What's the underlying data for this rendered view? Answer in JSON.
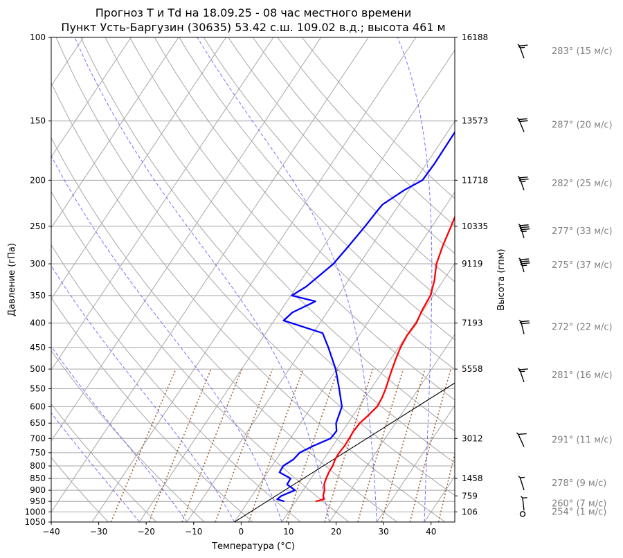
{
  "chart_data": {
    "type": "line",
    "subtype": "skew-T log-P diagram",
    "title_line1": "Прогноз T и Td на 18.09.25 - 08 час местного времени",
    "title_line2": "Пункт Усть-Баргузин (30635) 53.42 с.ш. 109.02 в.д.; высота 461 м",
    "xlabel": "Температура (°C)",
    "ylabel": "Давление (гПа)",
    "ylabel_right": "Высота (гпм)",
    "xlim": [
      -40,
      45
    ],
    "ylim": [
      1050,
      100
    ],
    "yscale": "log",
    "grid": true,
    "x_ticks": [
      "−40",
      "−30",
      "−20",
      "−10",
      "0",
      "10",
      "20",
      "30",
      "40"
    ],
    "x_tick_values": [
      -40,
      -30,
      -20,
      -10,
      0,
      10,
      20,
      30,
      40
    ],
    "y_ticks": [
      1050,
      1000,
      950,
      900,
      850,
      800,
      750,
      700,
      650,
      600,
      550,
      500,
      450,
      400,
      350,
      300,
      250,
      200,
      150,
      100
    ],
    "height_ticks": [
      {
        "p": 1000,
        "label": "106"
      },
      {
        "p": 925,
        "label": "759"
      },
      {
        "p": 850,
        "label": "1458"
      },
      {
        "p": 700,
        "label": "3012"
      },
      {
        "p": 500,
        "label": "5558"
      },
      {
        "p": 400,
        "label": "7193"
      },
      {
        "p": 300,
        "label": "9119"
      },
      {
        "p": 250,
        "label": "10335"
      },
      {
        "p": 200,
        "label": "11718"
      },
      {
        "p": 150,
        "label": "13573"
      },
      {
        "p": 100,
        "label": "16188"
      }
    ],
    "series": [
      {
        "color": "#ff0000",
        "points": [
          [
            950,
            14.2
          ],
          [
            940,
            15.6
          ],
          [
            925,
            15.0
          ],
          [
            900,
            14.5
          ],
          [
            875,
            13.6
          ],
          [
            850,
            13.2
          ],
          [
            825,
            12.9
          ],
          [
            800,
            12.8
          ],
          [
            775,
            12.4
          ],
          [
            750,
            12.3
          ],
          [
            725,
            12.5
          ],
          [
            700,
            12.4
          ],
          [
            675,
            12.3
          ],
          [
            650,
            12.5
          ],
          [
            625,
            13.2
          ],
          [
            600,
            13.8
          ],
          [
            575,
            13.6
          ],
          [
            550,
            13.1
          ],
          [
            525,
            12.4
          ],
          [
            500,
            11.7
          ],
          [
            475,
            11.0
          ],
          [
            450,
            10.4
          ],
          [
            425,
            10.1
          ],
          [
            400,
            10.3
          ],
          [
            375,
            9.7
          ],
          [
            350,
            9.4
          ],
          [
            325,
            8.1
          ],
          [
            300,
            6.2
          ],
          [
            275,
            5.0
          ],
          [
            250,
            4.0
          ],
          [
            225,
            2.8
          ],
          [
            215,
            2.3
          ],
          [
            200,
            1.7
          ],
          [
            175,
            0.3
          ],
          [
            150,
            -2.0
          ],
          [
            125,
            -4.5
          ],
          [
            108,
            -7.5
          ],
          [
            100,
            -9.8
          ]
        ]
      },
      {
        "color": "#0000ff",
        "points": [
          [
            950,
            7.6
          ],
          [
            940,
            5.8
          ],
          [
            925,
            6.2
          ],
          [
            900,
            8.3
          ],
          [
            875,
            5.8
          ],
          [
            850,
            5.7
          ],
          [
            825,
            2.5
          ],
          [
            800,
            2.4
          ],
          [
            775,
            3.6
          ],
          [
            750,
            4.0
          ],
          [
            725,
            6.0
          ],
          [
            700,
            8.5
          ],
          [
            675,
            8.7
          ],
          [
            650,
            7.5
          ],
          [
            600,
            6.4
          ],
          [
            550,
            3.3
          ],
          [
            500,
            -0.2
          ],
          [
            450,
            -4.8
          ],
          [
            420,
            -8.0
          ],
          [
            395,
            -18.0
          ],
          [
            380,
            -17.3
          ],
          [
            360,
            -14.0
          ],
          [
            350,
            -19.8
          ],
          [
            335,
            -18.0
          ],
          [
            300,
            -15.5
          ],
          [
            275,
            -14.8
          ],
          [
            250,
            -14.1
          ],
          [
            235,
            -13.8
          ],
          [
            225,
            -13.5
          ],
          [
            210,
            -11.0
          ],
          [
            200,
            -8.5
          ],
          [
            185,
            -8.3
          ],
          [
            150,
            -8.5
          ],
          [
            125,
            -10.0
          ],
          [
            100,
            -16.8
          ]
        ]
      }
    ],
    "dry_adiabats_theta_C": [
      -30,
      -20,
      -10,
      0,
      10,
      20,
      30,
      40,
      50,
      60,
      70,
      80,
      90,
      100,
      110,
      120,
      130,
      140,
      150
    ],
    "moist_adiabats_start_C": [
      -20,
      -10,
      0,
      10,
      20,
      30,
      40
    ],
    "mixing_ratio_lines_start_C": [
      -26,
      -18,
      -11,
      -4,
      3,
      11,
      19,
      26,
      31,
      37,
      43
    ],
    "reference_line": [
      [
        1050,
        0
      ],
      [
        370,
        41.5
      ]
    ],
    "wind": [
      {
        "p": 1000,
        "dir": 254,
        "speed": 1,
        "label": "254° (1 м/с)"
      },
      {
        "p": 960,
        "dir": 260,
        "speed": 7,
        "label": "260° (7 м/с)"
      },
      {
        "p": 870,
        "dir": 278,
        "speed": 9,
        "label": "278° (9 м/с)"
      },
      {
        "p": 705,
        "dir": 291,
        "speed": 11,
        "label": "291° (11 м/с)"
      },
      {
        "p": 515,
        "dir": 281,
        "speed": 16,
        "label": "281° (16 м/с)"
      },
      {
        "p": 408,
        "dir": 272,
        "speed": 22,
        "label": "272° (22 м/с)"
      },
      {
        "p": 302,
        "dir": 275,
        "speed": 37,
        "label": "275° (37 м/с)"
      },
      {
        "p": 256,
        "dir": 277,
        "speed": 33,
        "label": "277° (33 м/с)"
      },
      {
        "p": 203,
        "dir": 282,
        "speed": 25,
        "label": "282° (25 м/с)"
      },
      {
        "p": 153,
        "dir": 287,
        "speed": 20,
        "label": "287° (20 м/с)"
      },
      {
        "p": 107,
        "dir": 283,
        "speed": 15,
        "label": "283° (15 м/с)"
      }
    ]
  }
}
